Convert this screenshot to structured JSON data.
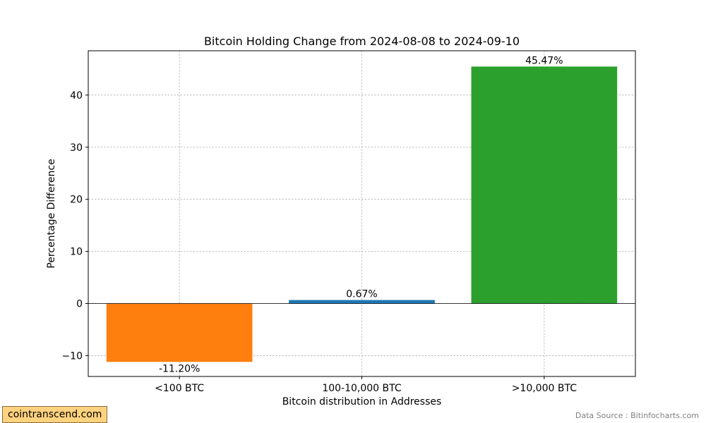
{
  "chart_data": {
    "type": "bar",
    "title": "Bitcoin Holding Change from 2024-08-08 to 2024-09-10",
    "xlabel": "Bitcoin distribution in Addresses",
    "ylabel": "Percentage Difference",
    "categories": [
      "<100 BTC",
      "100-10,000 BTC",
      ">10,000 BTC"
    ],
    "values": [
      -11.2,
      0.67,
      45.47
    ],
    "value_labels": [
      "-11.20%",
      "0.67%",
      "45.47%"
    ],
    "colors": [
      "#ff7f0e",
      "#1f77b4",
      "#2ca02c"
    ],
    "ylim": [
      -14,
      48.5
    ],
    "yticks": [
      -10,
      0,
      10,
      20,
      30,
      40
    ],
    "ytick_labels": [
      "−10",
      "0",
      "10",
      "20",
      "30",
      "40"
    ],
    "grid": true,
    "zero_line": true
  },
  "watermark": "cointranscend.com",
  "source_note": "Data Source : Bitinfocharts.com"
}
